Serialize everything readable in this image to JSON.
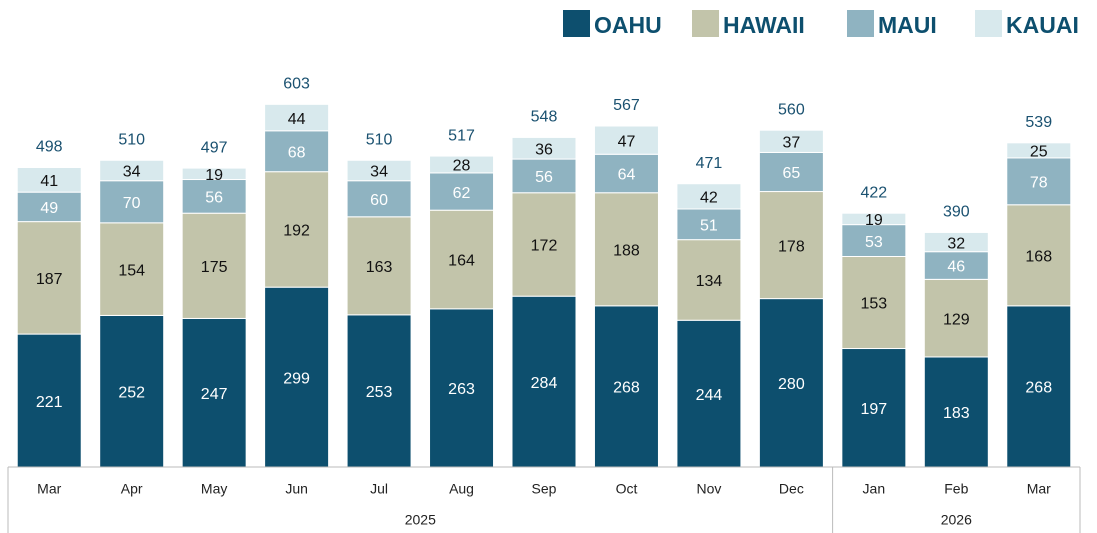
{
  "chart_data": {
    "type": "stacked_bar",
    "categories": [
      "Mar",
      "Apr",
      "May",
      "Jun",
      "Jul",
      "Aug",
      "Sep",
      "Oct",
      "Nov",
      "Dec",
      "Jan",
      "Feb",
      "Mar"
    ],
    "category_groups": [
      {
        "name": "2025",
        "count": 10
      },
      {
        "name": "2026",
        "count": 3
      }
    ],
    "series": [
      {
        "name": "OAHU",
        "color": "#0d4f6e",
        "values": [
          221,
          252,
          247,
          299,
          253,
          263,
          284,
          268,
          244,
          280,
          197,
          183,
          268
        ]
      },
      {
        "name": "HAWAII",
        "color": "#c2c4aa",
        "values": [
          187,
          154,
          175,
          192,
          163,
          164,
          172,
          188,
          134,
          178,
          153,
          129,
          168
        ]
      },
      {
        "name": "MAUI",
        "color": "#8fb3c1",
        "values": [
          49,
          70,
          56,
          68,
          60,
          62,
          56,
          64,
          51,
          65,
          53,
          46,
          78
        ]
      },
      {
        "name": "KAUAI",
        "color": "#d8e9ed",
        "values": [
          41,
          34,
          19,
          44,
          34,
          28,
          36,
          47,
          42,
          37,
          19,
          32,
          25
        ]
      }
    ],
    "totals": [
      498,
      510,
      497,
      603,
      510,
      517,
      548,
      567,
      471,
      560,
      422,
      390,
      539
    ],
    "ylim": [
      0,
      700
    ],
    "legend": "top-right"
  }
}
